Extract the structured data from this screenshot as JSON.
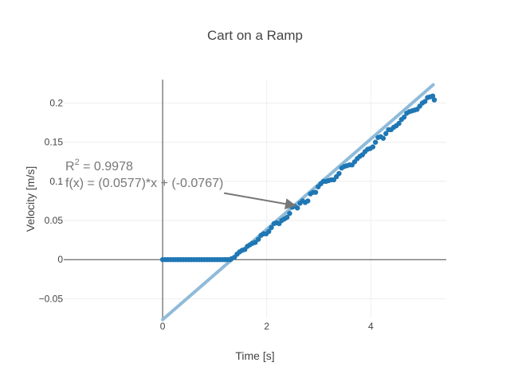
{
  "chart_data": {
    "type": "scatter",
    "title": "Cart on a Ramp",
    "xlabel": "Time [s]",
    "ylabel": "Velocity  [m/s]",
    "xlim": [
      -1.9,
      5.45
    ],
    "ylim": [
      -0.075,
      0.23
    ],
    "xticks": [
      0,
      2,
      4
    ],
    "xtick_labels": [
      "0",
      "2",
      "4"
    ],
    "yticks": [
      -0.05,
      0,
      0.05,
      0.1,
      0.15,
      0.2
    ],
    "ytick_labels": [
      "−0.05",
      "0",
      "0.05",
      "0.1",
      "0.15",
      "0.2"
    ],
    "grid": true,
    "colors": {
      "points": "#1f77b4",
      "fit": "#8fbbd9",
      "annotation": "#777777",
      "axis": "#444444",
      "grid": "#eeeeee"
    },
    "series": [
      {
        "type": "markers",
        "idle": {
          "x_start": 0.0,
          "x_end": 1.3,
          "step": 0.05,
          "y": 0
        },
        "points": [
          [
            1.32,
            0.001
          ],
          [
            1.38,
            0.003
          ],
          [
            1.43,
            0.007
          ],
          [
            1.48,
            0.01
          ],
          [
            1.53,
            0.012
          ],
          [
            1.58,
            0.013
          ],
          [
            1.63,
            0.017
          ],
          [
            1.68,
            0.019
          ],
          [
            1.73,
            0.021
          ],
          [
            1.78,
            0.022
          ],
          [
            1.84,
            0.026
          ],
          [
            1.89,
            0.031
          ],
          [
            1.94,
            0.033
          ],
          [
            1.99,
            0.033
          ],
          [
            2.04,
            0.036
          ],
          [
            2.09,
            0.041
          ],
          [
            2.14,
            0.046
          ],
          [
            2.19,
            0.047
          ],
          [
            2.24,
            0.046
          ],
          [
            2.29,
            0.05
          ],
          [
            2.34,
            0.052
          ],
          [
            2.39,
            0.054
          ],
          [
            2.44,
            0.059
          ],
          [
            2.49,
            0.067
          ],
          [
            2.54,
            0.068
          ],
          [
            2.59,
            0.066
          ],
          [
            2.64,
            0.072
          ],
          [
            2.69,
            0.075
          ],
          [
            2.74,
            0.073
          ],
          [
            2.79,
            0.075
          ],
          [
            2.84,
            0.084
          ],
          [
            2.89,
            0.086
          ],
          [
            2.94,
            0.086
          ],
          [
            2.99,
            0.093
          ],
          [
            3.04,
            0.097
          ],
          [
            3.09,
            0.1
          ],
          [
            3.14,
            0.1
          ],
          [
            3.19,
            0.101
          ],
          [
            3.24,
            0.102
          ],
          [
            3.29,
            0.102
          ],
          [
            3.34,
            0.106
          ],
          [
            3.39,
            0.11
          ],
          [
            3.44,
            0.117
          ],
          [
            3.49,
            0.119
          ],
          [
            3.54,
            0.12
          ],
          [
            3.59,
            0.121
          ],
          [
            3.64,
            0.121
          ],
          [
            3.69,
            0.125
          ],
          [
            3.74,
            0.129
          ],
          [
            3.79,
            0.132
          ],
          [
            3.84,
            0.134
          ],
          [
            3.89,
            0.138
          ],
          [
            3.94,
            0.141
          ],
          [
            3.99,
            0.142
          ],
          [
            4.04,
            0.144
          ],
          [
            4.09,
            0.15
          ],
          [
            4.14,
            0.156
          ],
          [
            4.19,
            0.157
          ],
          [
            4.24,
            0.155
          ],
          [
            4.29,
            0.161
          ],
          [
            4.34,
            0.166
          ],
          [
            4.39,
            0.166
          ],
          [
            4.44,
            0.169
          ],
          [
            4.49,
            0.171
          ],
          [
            4.54,
            0.174
          ],
          [
            4.59,
            0.179
          ],
          [
            4.64,
            0.182
          ],
          [
            4.69,
            0.187
          ],
          [
            4.74,
            0.189
          ],
          [
            4.79,
            0.19
          ],
          [
            4.84,
            0.191
          ],
          [
            4.89,
            0.192
          ],
          [
            4.94,
            0.196
          ],
          [
            4.99,
            0.2
          ],
          [
            5.04,
            0.202
          ],
          [
            5.09,
            0.207
          ],
          [
            5.14,
            0.208
          ],
          [
            5.19,
            0.209
          ],
          [
            5.22,
            0.204
          ]
        ]
      },
      {
        "type": "fit_line",
        "slope": 0.0577,
        "intercept": -0.0767,
        "x_range": [
          0,
          5.2
        ]
      }
    ],
    "annotation": {
      "r2_prefix": "R",
      "r2_sup": "2",
      "r2_value": " = 0.9978",
      "equation": "f(x) = (0.0577)*x + (-0.0767)",
      "arrow_from": [
        1.18,
        0.085
      ],
      "arrow_to": [
        2.55,
        0.069
      ]
    }
  }
}
